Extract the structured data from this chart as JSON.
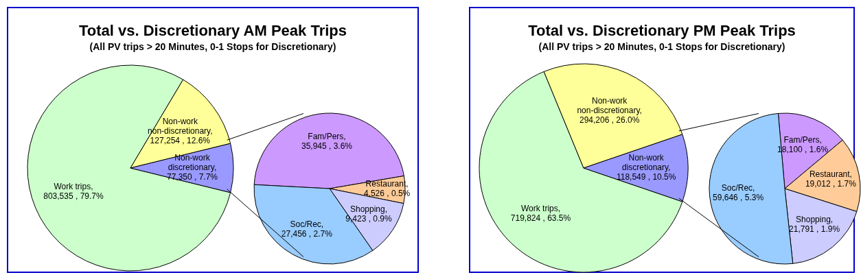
{
  "chart_data": [
    {
      "type": "pie",
      "title": "Total vs. Discretionary AM Peak Trips",
      "subtitle": "(All PV trips > 20 Minutes, 0-1 Stops for Discretionary)",
      "categories": [
        "Work trips",
        "Non-work non-discretionary",
        "Non-work discretionary"
      ],
      "values": [
        803535,
        127254,
        77350
      ],
      "colors": [
        "#ccffcc",
        "#ffff99",
        "#9999ff"
      ],
      "value_labels": [
        ", 803,535 , 79.7%",
        ", 127,254 , 12.6%",
        ", 77,350 , 7.7%"
      ]
    },
    {
      "type": "pie",
      "categories": [
        "Fam/Pers",
        "Restaurant",
        "Shopping",
        "Soc/Rec"
      ],
      "values": [
        35945,
        4526,
        9423,
        27456
      ],
      "colors": [
        "#cc99ff",
        "#ffcc99",
        "#ccccff",
        "#99ccff"
      ],
      "value_labels": [
        ", 35,945 , 3.6%",
        ", 4,526 , 0.5%",
        ", 9,423 , 0.9%",
        ", 27,456 , 2.7%"
      ]
    },
    {
      "type": "pie",
      "title": "Total vs. Discretionary PM Peak Trips",
      "subtitle": "(All PV trips > 20 Minutes, 0-1 Stops for Discretionary)",
      "categories": [
        "Work trips",
        "Non-work non-discretionary",
        "Non-work discretionary"
      ],
      "values": [
        719824,
        294206,
        118549
      ],
      "colors": [
        "#ccffcc",
        "#ffff99",
        "#9999ff"
      ],
      "value_labels": [
        ", 719,824 , 63.5%",
        ", 294,206 , 26.0%",
        ", 118,549 , 10.5%"
      ]
    },
    {
      "type": "pie",
      "categories": [
        "Fam/Pers",
        "Restaurant",
        "Shopping",
        "Soc/Rec"
      ],
      "values": [
        18100,
        19012,
        21791,
        59646
      ],
      "colors": [
        "#cc99ff",
        "#ffcc99",
        "#ccccff",
        "#99ccff"
      ],
      "value_labels": [
        ", 18,100 , 1.6%",
        ", 19,012 , 1.7%",
        ", 21,791 , 1.9%",
        ", 59,646 , 5.3%"
      ]
    }
  ]
}
